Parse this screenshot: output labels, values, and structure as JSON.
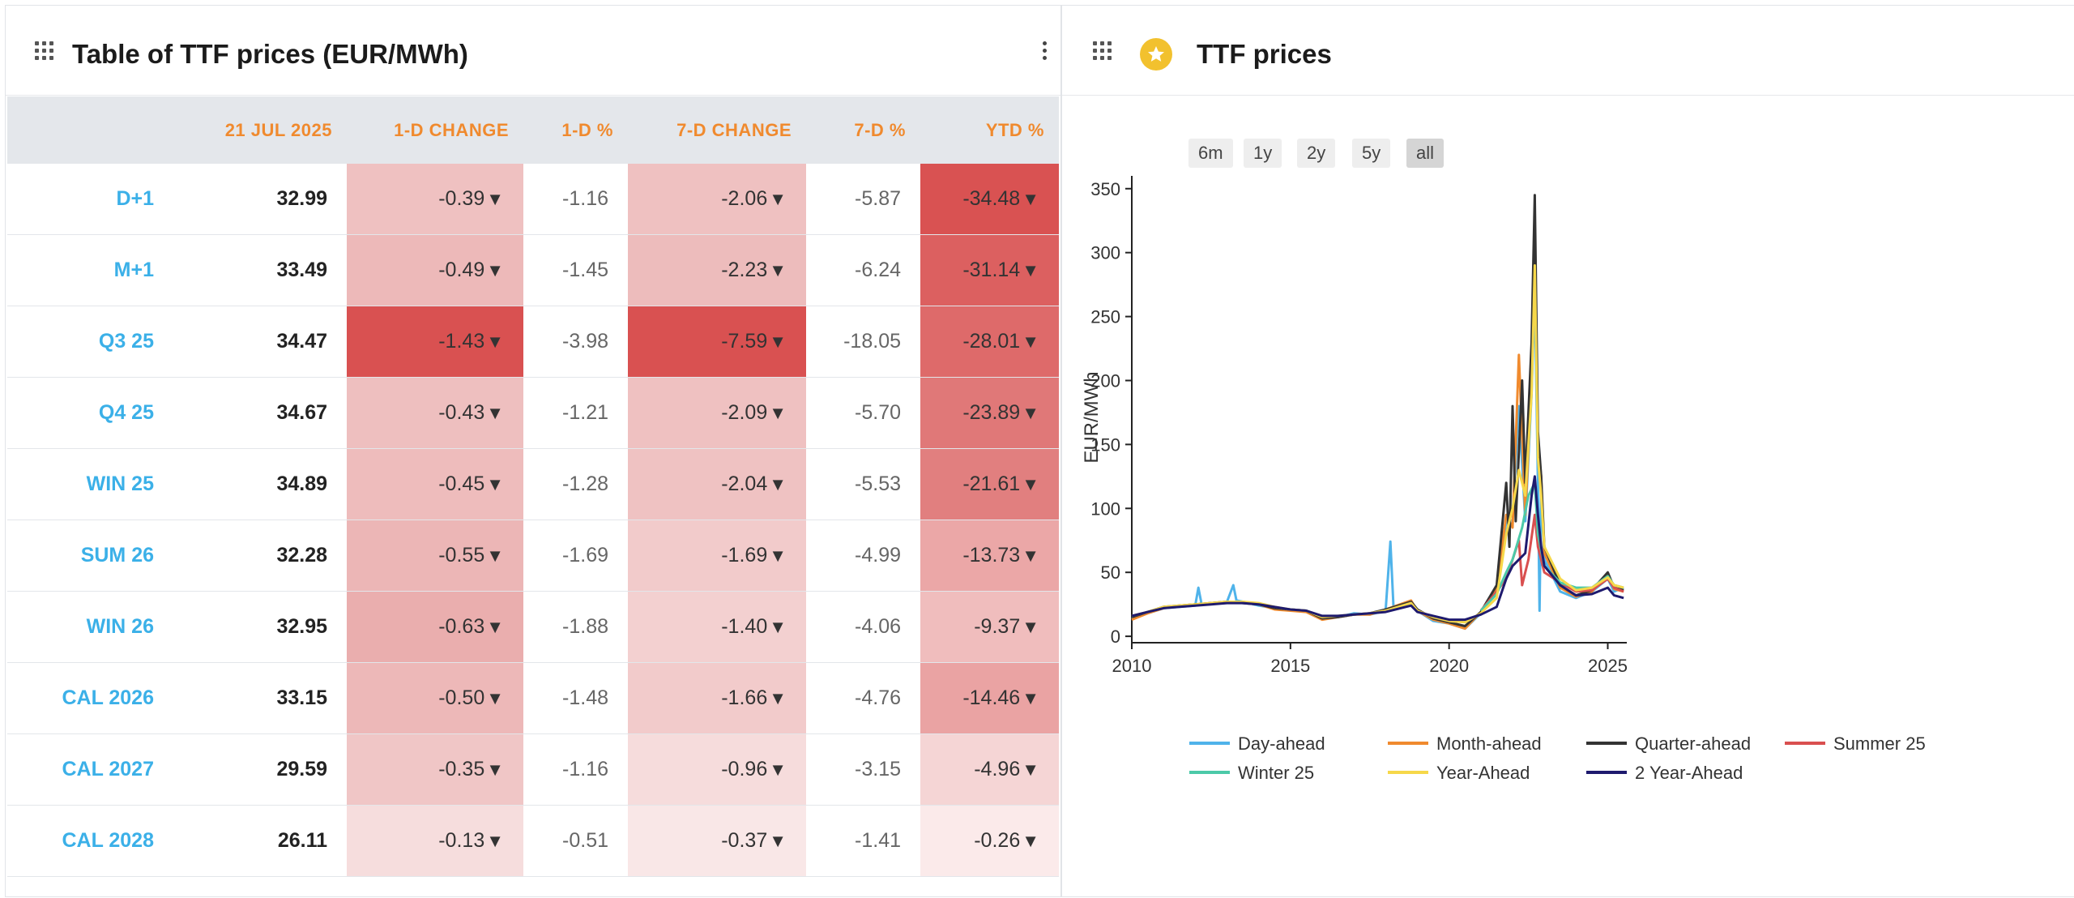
{
  "table_panel": {
    "title": "Table of TTF prices (EUR/MWh)",
    "columns": [
      "",
      "21 JUL 2025",
      "1-D CHANGE",
      "1-D %",
      "7-D CHANGE",
      "7-D %",
      "YTD %"
    ],
    "arrow": "▼",
    "rows": [
      {
        "label": "D+1",
        "price": "32.99",
        "d1_change": "-0.39",
        "d1_pct": "-1.16",
        "d7_change": "-2.06",
        "d7_pct": "-5.87",
        "ytd_pct": "-34.48",
        "d1_color": "#efc1c1",
        "d7_color": "#efc1c1",
        "ytd_color": "#d95252"
      },
      {
        "label": "M+1",
        "price": "33.49",
        "d1_change": "-0.49",
        "d1_pct": "-1.45",
        "d7_change": "-2.23",
        "d7_pct": "-6.24",
        "ytd_pct": "-31.14",
        "d1_color": "#edb9b9",
        "d7_color": "#edbcbc",
        "ytd_color": "#dc6060"
      },
      {
        "label": "Q3 25",
        "price": "34.47",
        "d1_change": "-1.43",
        "d1_pct": "-3.98",
        "d7_change": "-7.59",
        "d7_pct": "-18.05",
        "ytd_pct": "-28.01",
        "d1_color": "#d95151",
        "d7_color": "#d95151",
        "ytd_color": "#de6a6a"
      },
      {
        "label": "Q4 25",
        "price": "34.67",
        "d1_change": "-0.43",
        "d1_pct": "-1.21",
        "d7_change": "-2.09",
        "d7_pct": "-5.70",
        "ytd_pct": "-23.89",
        "d1_color": "#eebfbf",
        "d7_color": "#efc1c1",
        "ytd_color": "#e07878"
      },
      {
        "label": "WIN 25",
        "price": "34.89",
        "d1_change": "-0.45",
        "d1_pct": "-1.28",
        "d7_change": "-2.04",
        "d7_pct": "-5.53",
        "ytd_pct": "-21.61",
        "d1_color": "#eebcbc",
        "d7_color": "#efc2c2",
        "ytd_color": "#e17f7f"
      },
      {
        "label": "SUM 26",
        "price": "32.28",
        "d1_change": "-0.55",
        "d1_pct": "-1.69",
        "d7_change": "-1.69",
        "d7_pct": "-4.99",
        "ytd_pct": "-13.73",
        "d1_color": "#ecb6b6",
        "d7_color": "#f2cbcb",
        "ytd_color": "#eba7a7"
      },
      {
        "label": "WIN 26",
        "price": "32.95",
        "d1_change": "-0.63",
        "d1_pct": "-1.88",
        "d7_change": "-1.40",
        "d7_pct": "-4.06",
        "ytd_pct": "-9.37",
        "d1_color": "#eaaeae",
        "d7_color": "#f3d0d0",
        "ytd_color": "#f0bdbd"
      },
      {
        "label": "CAL 2026",
        "price": "33.15",
        "d1_change": "-0.50",
        "d1_pct": "-1.48",
        "d7_change": "-1.66",
        "d7_pct": "-4.76",
        "ytd_pct": "-14.46",
        "d1_color": "#edb8b8",
        "d7_color": "#f2cbcb",
        "ytd_color": "#eaa3a3"
      },
      {
        "label": "CAL 2027",
        "price": "29.59",
        "d1_change": "-0.35",
        "d1_pct": "-1.16",
        "d7_change": "-0.96",
        "d7_pct": "-3.15",
        "ytd_pct": "-4.96",
        "d1_color": "#f0c6c6",
        "d7_color": "#f6dcdc",
        "ytd_color": "#f5d5d5"
      },
      {
        "label": "CAL 2028",
        "price": "26.11",
        "d1_change": "-0.13",
        "d1_pct": "-0.51",
        "d7_change": "-0.37",
        "d7_pct": "-1.41",
        "ytd_pct": "-0.26",
        "d1_color": "#f6dddd",
        "d7_color": "#f9e7e7",
        "ytd_color": "#fbeaea"
      }
    ]
  },
  "chart_panel": {
    "title": "TTF prices",
    "ranges": [
      "6m",
      "1y",
      "2y",
      "5y",
      "all"
    ],
    "active_range": "all"
  },
  "chart_data": {
    "type": "line",
    "title": "TTF prices",
    "xlabel": "",
    "ylabel": "EUR/MWh",
    "xlim": [
      2010,
      2025.6
    ],
    "ylim": [
      -5,
      360
    ],
    "xticks": [
      2010,
      2015,
      2020,
      2025
    ],
    "yticks": [
      0,
      50,
      100,
      150,
      200,
      250,
      300,
      350
    ],
    "legend_position": "bottom",
    "series": [
      {
        "name": "Day-ahead",
        "color": "#4fb3ea",
        "points": [
          [
            2010,
            14
          ],
          [
            2010.5,
            18
          ],
          [
            2011,
            22
          ],
          [
            2011.5,
            23
          ],
          [
            2012,
            24
          ],
          [
            2012.1,
            38
          ],
          [
            2012.2,
            25
          ],
          [
            2012.6,
            26
          ],
          [
            2013,
            27
          ],
          [
            2013.2,
            40
          ],
          [
            2013.3,
            28
          ],
          [
            2013.5,
            27
          ],
          [
            2014,
            24
          ],
          [
            2014.5,
            22
          ],
          [
            2015,
            21
          ],
          [
            2015.5,
            20
          ],
          [
            2016,
            14
          ],
          [
            2016.5,
            15
          ],
          [
            2017,
            18
          ],
          [
            2017.5,
            17
          ],
          [
            2018,
            20
          ],
          [
            2018.15,
            74
          ],
          [
            2018.25,
            22
          ],
          [
            2018.8,
            27
          ],
          [
            2019,
            20
          ],
          [
            2019.5,
            12
          ],
          [
            2020,
            10
          ],
          [
            2020.5,
            6
          ],
          [
            2021,
            18
          ],
          [
            2021.5,
            35
          ],
          [
            2021.8,
            90
          ],
          [
            2022,
            95
          ],
          [
            2022.2,
            180
          ],
          [
            2022.4,
            90
          ],
          [
            2022.6,
            190
          ],
          [
            2022.7,
            270
          ],
          [
            2022.8,
            120
          ],
          [
            2022.85,
            20
          ],
          [
            2022.9,
            115
          ],
          [
            2023,
            60
          ],
          [
            2023.5,
            35
          ],
          [
            2024,
            30
          ],
          [
            2024.5,
            35
          ],
          [
            2025,
            45
          ],
          [
            2025.2,
            35
          ],
          [
            2025.5,
            38
          ]
        ]
      },
      {
        "name": "Month-ahead",
        "color": "#f08a2e",
        "points": [
          [
            2010,
            13
          ],
          [
            2010.5,
            18
          ],
          [
            2011,
            22
          ],
          [
            2011.5,
            24
          ],
          [
            2012,
            25
          ],
          [
            2012.5,
            26
          ],
          [
            2013,
            27
          ],
          [
            2013.5,
            27
          ],
          [
            2014,
            25
          ],
          [
            2014.5,
            21
          ],
          [
            2015,
            20
          ],
          [
            2015.5,
            19
          ],
          [
            2016,
            13
          ],
          [
            2016.5,
            15
          ],
          [
            2017,
            17
          ],
          [
            2017.5,
            17
          ],
          [
            2018,
            21
          ],
          [
            2018.8,
            28
          ],
          [
            2019,
            20
          ],
          [
            2019.5,
            13
          ],
          [
            2020,
            10
          ],
          [
            2020.5,
            6
          ],
          [
            2021,
            19
          ],
          [
            2021.5,
            38
          ],
          [
            2021.8,
            95
          ],
          [
            2022,
            85
          ],
          [
            2022.2,
            220
          ],
          [
            2022.4,
            95
          ],
          [
            2022.6,
            200
          ],
          [
            2022.7,
            310
          ],
          [
            2022.8,
            150
          ],
          [
            2022.9,
            125
          ],
          [
            2023,
            65
          ],
          [
            2023.5,
            38
          ],
          [
            2024,
            31
          ],
          [
            2024.5,
            35
          ],
          [
            2025,
            48
          ],
          [
            2025.2,
            37
          ],
          [
            2025.5,
            35
          ]
        ]
      },
      {
        "name": "Quarter-ahead",
        "color": "#333333",
        "points": [
          [
            2010,
            15
          ],
          [
            2010.5,
            19
          ],
          [
            2011,
            23
          ],
          [
            2011.5,
            24
          ],
          [
            2012,
            25
          ],
          [
            2012.5,
            26
          ],
          [
            2013,
            27
          ],
          [
            2013.5,
            26
          ],
          [
            2014,
            25
          ],
          [
            2014.5,
            22
          ],
          [
            2015,
            21
          ],
          [
            2015.5,
            20
          ],
          [
            2016,
            14
          ],
          [
            2016.5,
            15
          ],
          [
            2017,
            17
          ],
          [
            2017.5,
            18
          ],
          [
            2018,
            21
          ],
          [
            2018.8,
            27
          ],
          [
            2019,
            21
          ],
          [
            2019.5,
            14
          ],
          [
            2020,
            11
          ],
          [
            2020.5,
            8
          ],
          [
            2021,
            19
          ],
          [
            2021.5,
            40
          ],
          [
            2021.8,
            120
          ],
          [
            2021.9,
            70
          ],
          [
            2022,
            180
          ],
          [
            2022.1,
            90
          ],
          [
            2022.3,
            200
          ],
          [
            2022.4,
            120
          ],
          [
            2022.6,
            230
          ],
          [
            2022.7,
            345
          ],
          [
            2022.8,
            160
          ],
          [
            2022.9,
            125
          ],
          [
            2023,
            70
          ],
          [
            2023.5,
            40
          ],
          [
            2024,
            32
          ],
          [
            2024.5,
            36
          ],
          [
            2025,
            50
          ],
          [
            2025.2,
            38
          ],
          [
            2025.5,
            36
          ]
        ]
      },
      {
        "name": "Summer 25",
        "color": "#d94f4f",
        "points": [
          [
            2021,
            20
          ],
          [
            2021.5,
            35
          ],
          [
            2021.8,
            45
          ],
          [
            2022,
            60
          ],
          [
            2022.2,
            75
          ],
          [
            2022.3,
            40
          ],
          [
            2022.5,
            60
          ],
          [
            2022.7,
            95
          ],
          [
            2022.8,
            70
          ],
          [
            2023,
            50
          ],
          [
            2023.5,
            42
          ],
          [
            2024,
            35
          ],
          [
            2024.5,
            36
          ],
          [
            2025,
            45
          ],
          [
            2025.2,
            38
          ],
          [
            2025.5,
            35
          ]
        ]
      },
      {
        "name": "Winter 25",
        "color": "#4cc9a8",
        "points": [
          [
            2021,
            20
          ],
          [
            2021.5,
            33
          ],
          [
            2021.8,
            50
          ],
          [
            2022,
            60
          ],
          [
            2022.3,
            85
          ],
          [
            2022.5,
            110
          ],
          [
            2022.7,
            120
          ],
          [
            2022.8,
            80
          ],
          [
            2023,
            55
          ],
          [
            2023.5,
            42
          ],
          [
            2024,
            38
          ],
          [
            2024.5,
            38
          ],
          [
            2025,
            47
          ],
          [
            2025.2,
            40
          ],
          [
            2025.5,
            38
          ]
        ]
      },
      {
        "name": "Year-Ahead",
        "color": "#f6d84a",
        "points": [
          [
            2010,
            16
          ],
          [
            2010.5,
            19
          ],
          [
            2011,
            23
          ],
          [
            2011.5,
            24
          ],
          [
            2012,
            25
          ],
          [
            2012.5,
            26
          ],
          [
            2013,
            27
          ],
          [
            2013.5,
            27
          ],
          [
            2014,
            26
          ],
          [
            2014.5,
            23
          ],
          [
            2015,
            21
          ],
          [
            2015.5,
            20
          ],
          [
            2016,
            15
          ],
          [
            2016.5,
            16
          ],
          [
            2017,
            17
          ],
          [
            2017.5,
            18
          ],
          [
            2018,
            20
          ],
          [
            2018.8,
            26
          ],
          [
            2019,
            20
          ],
          [
            2019.5,
            15
          ],
          [
            2020,
            12
          ],
          [
            2020.5,
            11
          ],
          [
            2021,
            18
          ],
          [
            2021.5,
            30
          ],
          [
            2021.8,
            80
          ],
          [
            2022,
            100
          ],
          [
            2022.2,
            130
          ],
          [
            2022.4,
            110
          ],
          [
            2022.6,
            190
          ],
          [
            2022.7,
            290
          ],
          [
            2022.8,
            140
          ],
          [
            2022.9,
            110
          ],
          [
            2023,
            70
          ],
          [
            2023.5,
            45
          ],
          [
            2024,
            36
          ],
          [
            2024.5,
            38
          ],
          [
            2025,
            46
          ],
          [
            2025.2,
            40
          ],
          [
            2025.5,
            38
          ]
        ]
      },
      {
        "name": "2 Year-Ahead",
        "color": "#1e1a6e",
        "points": [
          [
            2010,
            16
          ],
          [
            2010.5,
            19
          ],
          [
            2011,
            22
          ],
          [
            2011.5,
            23
          ],
          [
            2012,
            24
          ],
          [
            2012.5,
            25
          ],
          [
            2013,
            26
          ],
          [
            2013.5,
            26
          ],
          [
            2014,
            25
          ],
          [
            2014.5,
            23
          ],
          [
            2015,
            21
          ],
          [
            2015.5,
            20
          ],
          [
            2016,
            16
          ],
          [
            2016.5,
            16
          ],
          [
            2017,
            17
          ],
          [
            2017.5,
            18
          ],
          [
            2018,
            19
          ],
          [
            2018.8,
            24
          ],
          [
            2019,
            19
          ],
          [
            2019.5,
            16
          ],
          [
            2020,
            13
          ],
          [
            2020.5,
            13
          ],
          [
            2021,
            17
          ],
          [
            2021.5,
            23
          ],
          [
            2021.8,
            45
          ],
          [
            2022,
            55
          ],
          [
            2022.2,
            60
          ],
          [
            2022.4,
            65
          ],
          [
            2022.6,
            110
          ],
          [
            2022.7,
            125
          ],
          [
            2022.8,
            95
          ],
          [
            2022.9,
            70
          ],
          [
            2023,
            55
          ],
          [
            2023.5,
            40
          ],
          [
            2024,
            32
          ],
          [
            2024.5,
            33
          ],
          [
            2025,
            38
          ],
          [
            2025.2,
            32
          ],
          [
            2025.5,
            30
          ]
        ]
      }
    ]
  }
}
